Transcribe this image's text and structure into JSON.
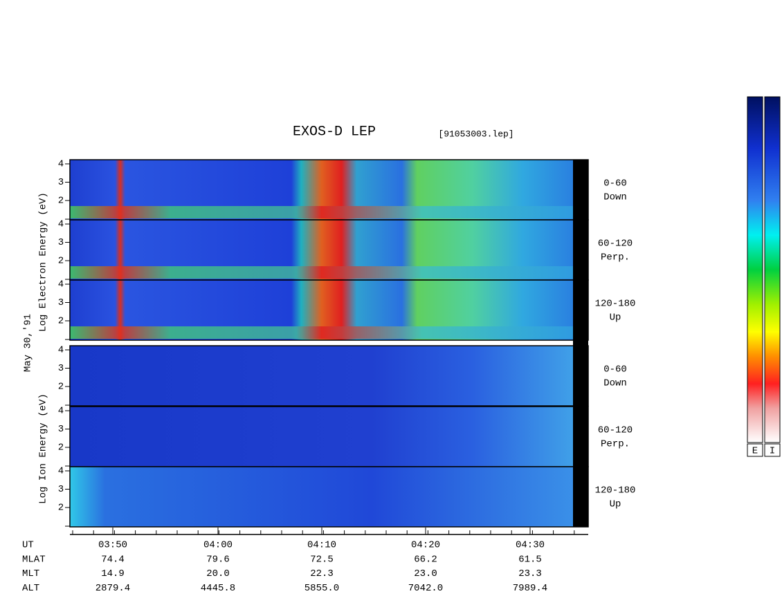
{
  "title": "EXOS-D LEP",
  "file": "[91053003.lep]",
  "date_label": "May 30,'91",
  "electron_axis_label": "Log  Electron  Energy (eV)",
  "ion_axis_label": "Log  Ion  Energy (eV)",
  "energy_ticks": [
    "4",
    "3",
    "2"
  ],
  "panels": [
    {
      "range": "0-60",
      "direction": "Down"
    },
    {
      "range": "60-120",
      "direction": "Perp."
    },
    {
      "range": "120-180",
      "direction": "Up"
    },
    {
      "range": "0-60",
      "direction": "Down"
    },
    {
      "range": "60-120",
      "direction": "Perp."
    },
    {
      "range": "120-180",
      "direction": "Up"
    }
  ],
  "time_labels": [
    "03:50",
    "04:00",
    "04:10",
    "04:20",
    "04:30"
  ],
  "orbit_table": [
    {
      "name": "UT",
      "values": []
    },
    {
      "name": "MLAT",
      "values": [
        "74.4",
        "79.6",
        "72.5",
        "66.2",
        "61.5"
      ]
    },
    {
      "name": "MLT",
      "values": [
        "14.9",
        "20.0",
        "22.3",
        "23.0",
        "23.3"
      ]
    },
    {
      "name": "ALT",
      "values": [
        "2879.4",
        "4445.8",
        "5855.0",
        "7042.0",
        "7989.4"
      ]
    }
  ],
  "colorbars": [
    "E",
    "I"
  ]
}
